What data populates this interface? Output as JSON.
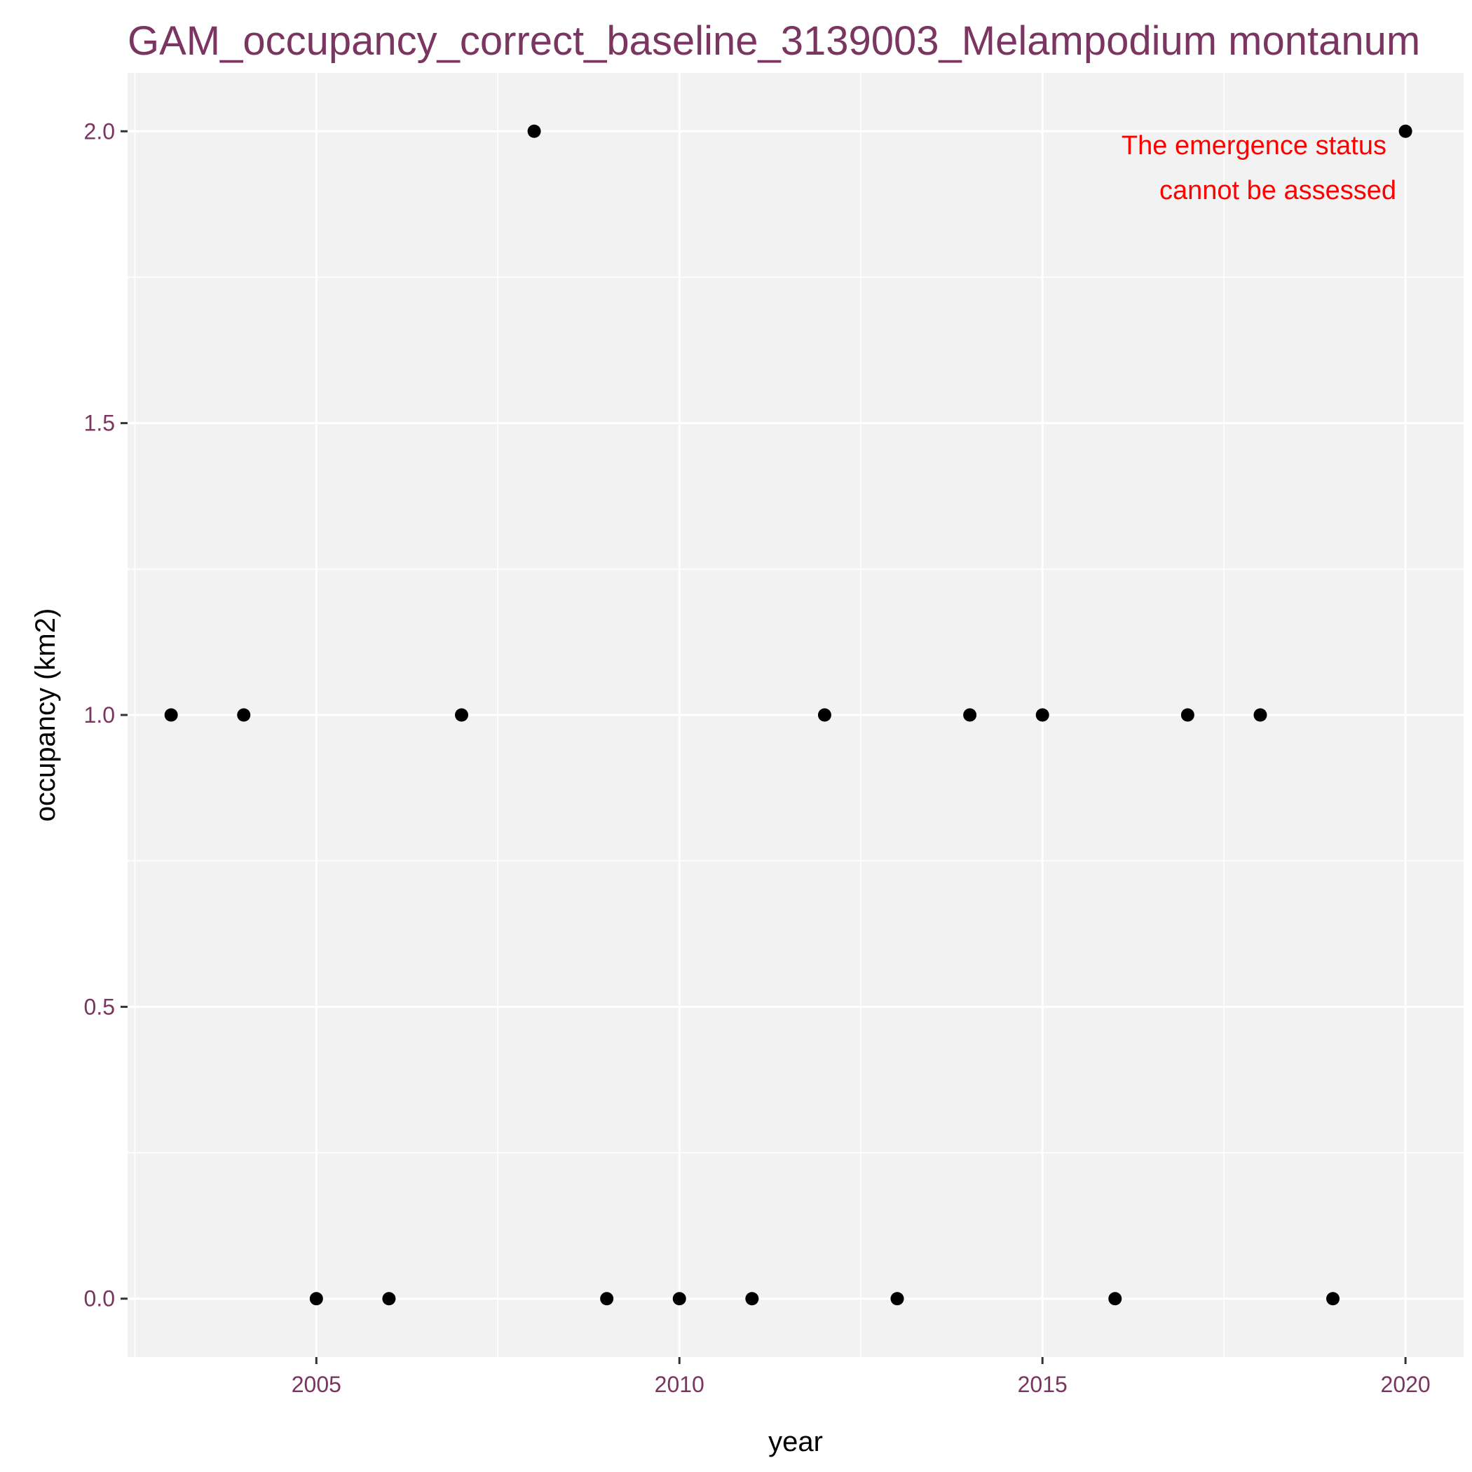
{
  "chart_data": {
    "type": "scatter",
    "title": "GAM_occupancy_correct_baseline_3139003_Melampodium montanum",
    "xlabel": "year",
    "ylabel": "occupancy (km2)",
    "xlim": [
      2002.4,
      2020.8
    ],
    "ylim": [
      -0.1,
      2.1
    ],
    "x_ticks": [
      2005,
      2010,
      2015,
      2020
    ],
    "x_tick_labels": [
      "2005",
      "2010",
      "2015",
      "2020"
    ],
    "y_ticks": [
      0.0,
      0.5,
      1.0,
      1.5,
      2.0
    ],
    "y_tick_labels": [
      "0.0",
      "0.5",
      "1.0",
      "1.5",
      "2.0"
    ],
    "grid": true,
    "annotation": [
      "The emergence status",
      "cannot be assessed"
    ],
    "points": [
      {
        "x": 2003,
        "y": 1
      },
      {
        "x": 2004,
        "y": 1
      },
      {
        "x": 2005,
        "y": 0
      },
      {
        "x": 2006,
        "y": 0
      },
      {
        "x": 2007,
        "y": 1
      },
      {
        "x": 2008,
        "y": 2
      },
      {
        "x": 2009,
        "y": 0
      },
      {
        "x": 2010,
        "y": 0
      },
      {
        "x": 2011,
        "y": 0
      },
      {
        "x": 2012,
        "y": 1
      },
      {
        "x": 2013,
        "y": 0
      },
      {
        "x": 2014,
        "y": 1
      },
      {
        "x": 2015,
        "y": 1
      },
      {
        "x": 2016,
        "y": 0
      },
      {
        "x": 2017,
        "y": 1
      },
      {
        "x": 2018,
        "y": 1
      },
      {
        "x": 2019,
        "y": 0
      },
      {
        "x": 2020,
        "y": 2
      }
    ],
    "colors": {
      "panel": "#f2f2f2",
      "grid": "#ffffff",
      "point": "#000000",
      "annotation": "#ff0000",
      "text_accent": "#7a3560"
    }
  }
}
